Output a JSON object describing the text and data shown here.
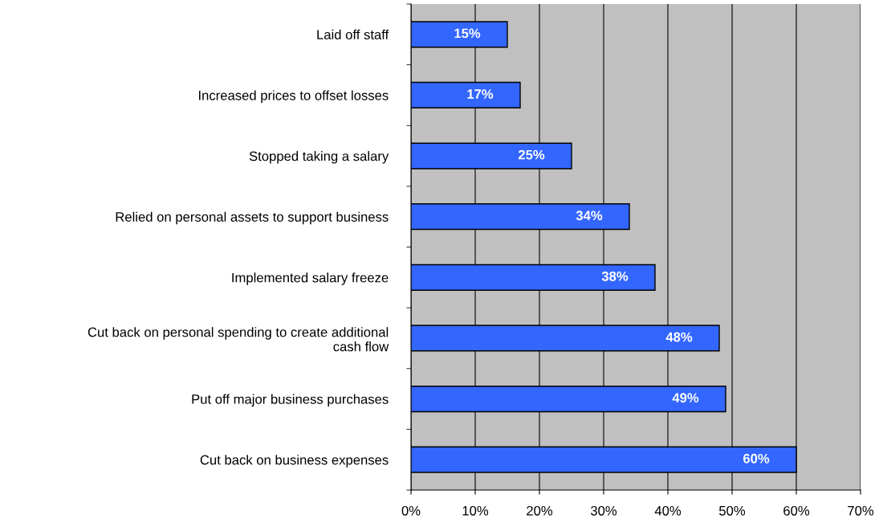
{
  "chart_data": {
    "type": "bar",
    "orientation": "horizontal",
    "categories": [
      "Laid off staff",
      "Increased prices to offset losses",
      "Stopped taking a salary",
      "Relied on personal assets to support business",
      "Implemented salary freeze",
      "Cut back on personal spending to create additional\ncash flow",
      "Put off major business purchases",
      "Cut back on business expenses"
    ],
    "values": [
      15,
      17,
      25,
      34,
      38,
      48,
      49,
      60
    ],
    "value_labels": [
      "15%",
      "17%",
      "25%",
      "34%",
      "38%",
      "48%",
      "49%",
      "60%"
    ],
    "color": "#3366ff",
    "xlim": [
      0,
      70
    ],
    "xticks": [
      {
        "value": 0,
        "label": "0%"
      },
      {
        "value": 10,
        "label": "10%"
      },
      {
        "value": 20,
        "label": "20%"
      },
      {
        "value": 30,
        "label": "30%"
      },
      {
        "value": 40,
        "label": "40%"
      },
      {
        "value": 50,
        "label": "50%"
      },
      {
        "value": 60,
        "label": "60%"
      },
      {
        "value": 70,
        "label": "70%"
      }
    ],
    "grid": "x",
    "legend": false
  }
}
